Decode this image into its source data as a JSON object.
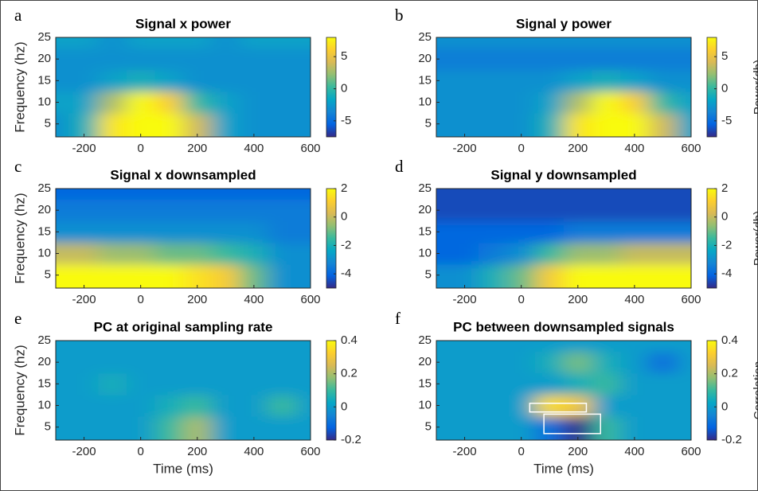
{
  "chart_data": [
    {
      "type": "heatmap",
      "panel": "a",
      "title": "Signal x power",
      "ylabel": "Frequency (hz)",
      "x": [
        -300,
        -200,
        -100,
        0,
        100,
        200,
        300,
        400,
        500,
        600
      ],
      "y": [
        5,
        10,
        15,
        20,
        25
      ],
      "z": [
        [
          -3,
          -1,
          7,
          8,
          8,
          4,
          -2,
          -3,
          -3,
          -3
        ],
        [
          -2,
          -2,
          3,
          8,
          6,
          0,
          -2,
          -3,
          -3,
          -3
        ],
        [
          -3,
          -3,
          -2,
          -1,
          -2,
          -3,
          -3,
          -3,
          -3,
          -3
        ],
        [
          -3,
          -3,
          -3,
          -3,
          -3,
          -3,
          -3,
          -3,
          -3,
          -3
        ],
        [
          -2,
          -2,
          -3,
          -2,
          -2,
          -2,
          -3,
          -2,
          -2,
          -2
        ]
      ],
      "xlim": [
        -300,
        600
      ],
      "ylim": [
        2,
        25
      ],
      "xticks": [
        -200,
        0,
        200,
        400,
        600
      ],
      "yticks": [
        5,
        10,
        15,
        20,
        25
      ],
      "clim": [
        -7.5,
        8
      ],
      "cticks": [
        -5,
        0,
        5
      ],
      "colormap": "parula"
    },
    {
      "type": "heatmap",
      "panel": "b",
      "title": "Signal y power",
      "colorbar_label": "Power(db)",
      "x": [
        -300,
        -200,
        -100,
        0,
        100,
        200,
        300,
        400,
        500,
        600
      ],
      "y": [
        5,
        10,
        15,
        20,
        25
      ],
      "z": [
        [
          -3,
          -3,
          -3,
          -3,
          -1,
          7,
          8,
          8,
          4,
          -2
        ],
        [
          -3,
          -3,
          -3,
          -3,
          -2,
          3,
          8,
          6,
          0,
          -2
        ],
        [
          -3,
          -3,
          -3,
          -3,
          -3,
          -2,
          -1,
          -2,
          -3,
          -3
        ],
        [
          -4,
          -4,
          -4,
          -4,
          -4,
          -4,
          -4,
          -4,
          -4,
          -4
        ],
        [
          -3,
          -3,
          -3,
          -3,
          -3,
          -3,
          -3,
          -3,
          -3,
          -3
        ]
      ],
      "xlim": [
        -300,
        600
      ],
      "ylim": [
        2,
        25
      ],
      "xticks": [
        -200,
        0,
        200,
        400,
        600
      ],
      "yticks": [
        5,
        10,
        15,
        20,
        25
      ],
      "clim": [
        -7.5,
        8
      ],
      "cticks": [
        -5,
        0,
        5
      ],
      "colormap": "parula"
    },
    {
      "type": "heatmap",
      "panel": "c",
      "title": "Signal x downsampled",
      "ylabel": "Frequency (hz)",
      "x": [
        -300,
        -200,
        -100,
        0,
        100,
        200,
        300,
        400,
        500,
        600
      ],
      "y": [
        5,
        10,
        15,
        20,
        25
      ],
      "z": [
        [
          2,
          2,
          2,
          2,
          2,
          1.5,
          1,
          -1,
          -3,
          -3
        ],
        [
          0,
          0,
          -0.5,
          -0.5,
          -1,
          -1,
          -1.5,
          -2,
          -3,
          -3
        ],
        [
          -3,
          -3,
          -3,
          -3,
          -3,
          -3,
          -3,
          -3,
          -3.5,
          -3.5
        ],
        [
          -3.5,
          -3.5,
          -3.5,
          -3.5,
          -3.5,
          -3.5,
          -3.5,
          -3.5,
          -3.5,
          -3.5
        ],
        [
          -4,
          -4,
          -4,
          -4,
          -4,
          -4,
          -4,
          -4,
          -4,
          -4
        ]
      ],
      "xlim": [
        -300,
        600
      ],
      "ylim": [
        2,
        25
      ],
      "xticks": [
        -200,
        0,
        200,
        400,
        600
      ],
      "yticks": [
        5,
        10,
        15,
        20,
        25
      ],
      "clim": [
        -5,
        2
      ],
      "cticks": [
        -4,
        -2,
        0,
        2
      ],
      "colormap": "parula"
    },
    {
      "type": "heatmap",
      "panel": "d",
      "title": "Signal y downsampled",
      "colorbar_label": "Power(db)",
      "x": [
        -300,
        -200,
        -100,
        0,
        100,
        200,
        300,
        400,
        500,
        600
      ],
      "y": [
        5,
        10,
        15,
        20,
        25
      ],
      "z": [
        [
          -3,
          -3,
          -2,
          -1,
          1,
          2,
          2,
          2,
          2,
          2
        ],
        [
          -4,
          -4,
          -3.5,
          -3,
          -1.5,
          -0.5,
          -0.5,
          0,
          0,
          0
        ],
        [
          -4,
          -4,
          -4,
          -4,
          -4,
          -3.5,
          -3.5,
          -3.5,
          -3.5,
          -3.5
        ],
        [
          -4.5,
          -4.5,
          -4.5,
          -4.5,
          -4.5,
          -4.5,
          -4.5,
          -4.5,
          -4.5,
          -4.5
        ],
        [
          -4.5,
          -4.5,
          -4.5,
          -4.5,
          -4.5,
          -4.5,
          -4.5,
          -4.5,
          -4.5,
          -4.5
        ]
      ],
      "xlim": [
        -300,
        600
      ],
      "ylim": [
        2,
        25
      ],
      "xticks": [
        -200,
        0,
        200,
        400,
        600
      ],
      "yticks": [
        5,
        10,
        15,
        20,
        25
      ],
      "clim": [
        -5,
        2
      ],
      "cticks": [
        -4,
        -2,
        0,
        2
      ],
      "colormap": "parula"
    },
    {
      "type": "heatmap",
      "panel": "e",
      "title": "PC at original sampling rate",
      "ylabel": "Frequency (hz)",
      "xlabel": "Time (ms)",
      "x": [
        -300,
        -200,
        -100,
        0,
        100,
        200,
        300,
        400,
        500,
        600
      ],
      "y": [
        5,
        10,
        15,
        20,
        25
      ],
      "z": [
        [
          0,
          0,
          0,
          0,
          0.1,
          0.2,
          0,
          0,
          0,
          0
        ],
        [
          0,
          0,
          0,
          0,
          0.05,
          0.1,
          0,
          0,
          0.1,
          0
        ],
        [
          0,
          0,
          0.05,
          0,
          0,
          0,
          0,
          0,
          0,
          0
        ],
        [
          0,
          0,
          0,
          0,
          0,
          0,
          0,
          0,
          0,
          0
        ],
        [
          0,
          0,
          0,
          0,
          0,
          0,
          0,
          0,
          0,
          0
        ]
      ],
      "xlim": [
        -300,
        600
      ],
      "ylim": [
        2,
        25
      ],
      "xticks": [
        -200,
        0,
        200,
        400,
        600
      ],
      "yticks": [
        5,
        10,
        15,
        20,
        25
      ],
      "clim": [
        -0.2,
        0.4
      ],
      "cticks": [
        -0.2,
        0,
        0.2,
        0.4
      ],
      "colormap": "parula"
    },
    {
      "type": "heatmap",
      "panel": "f",
      "title": "PC between downsampled signals",
      "xlabel": "Time (ms)",
      "colorbar_label": "Correlation",
      "x": [
        -300,
        -200,
        -100,
        0,
        100,
        200,
        300,
        400,
        500,
        600
      ],
      "y": [
        5,
        10,
        15,
        20,
        25
      ],
      "z": [
        [
          0,
          0,
          0,
          0,
          -0.1,
          -0.2,
          0.1,
          0,
          0,
          0
        ],
        [
          0,
          0,
          0,
          0,
          0.35,
          0.3,
          0,
          0,
          0,
          0
        ],
        [
          0,
          0,
          0,
          0,
          0,
          0.05,
          0.1,
          0,
          0,
          0
        ],
        [
          0,
          0,
          0,
          0,
          0.05,
          0.15,
          0.05,
          0,
          -0.1,
          0
        ],
        [
          0,
          0,
          0,
          0,
          0,
          0,
          0,
          0,
          0,
          0
        ]
      ],
      "xlim": [
        -300,
        600
      ],
      "ylim": [
        2,
        25
      ],
      "xticks": [
        -200,
        0,
        200,
        400,
        600
      ],
      "yticks": [
        5,
        10,
        15,
        20,
        25
      ],
      "clim": [
        -0.2,
        0.4
      ],
      "cticks": [
        -0.2,
        0,
        0.2,
        0.4
      ],
      "colormap": "parula",
      "boxes": [
        {
          "x": [
            30,
            230
          ],
          "y": [
            8.5,
            10.5
          ]
        },
        {
          "x": [
            80,
            280
          ],
          "y": [
            3.5,
            8
          ]
        }
      ]
    }
  ]
}
